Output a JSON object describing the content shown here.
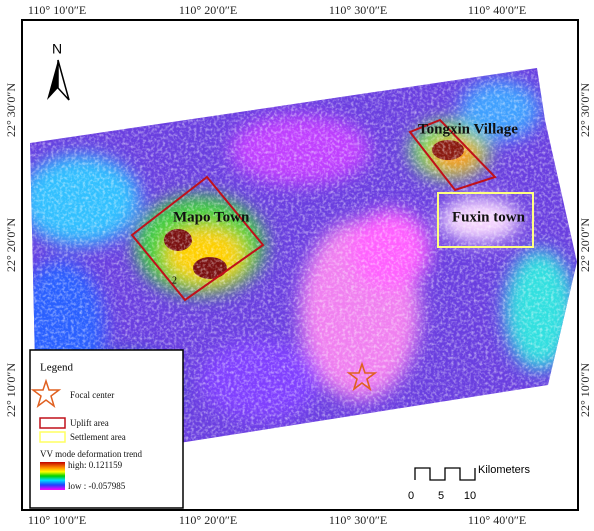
{
  "top_labels": [
    "110° 10′0″E",
    "110° 20′0″E",
    "110° 30′0″E",
    "110° 40′0″E"
  ],
  "bottom_labels": [
    "110° 10′0″E",
    "110° 20′0″E",
    "110° 30′0″E",
    "110° 40′0″E"
  ],
  "left_labels": [
    "22° 30′0″N",
    "22° 20′0″N",
    "22° 10′0″N"
  ],
  "right_labels": [
    "22° 30′0″N",
    "22° 20′0″N",
    "22° 10′0″N"
  ],
  "north": "N",
  "places": [
    "Mapo Town",
    "Tongxin Village",
    "Fuxin town"
  ],
  "region_number": "2",
  "legend": {
    "title": "Legend",
    "focal": "Focal center",
    "uplift": "Uplift area",
    "settlement": "Settlement area",
    "trend": "VV mode deformation trend",
    "high": "high: 0.121159",
    "low": "low : -0.057985"
  },
  "scale": {
    "unit": "Kilometers",
    "ticks": [
      "0",
      "5",
      "10"
    ]
  }
}
